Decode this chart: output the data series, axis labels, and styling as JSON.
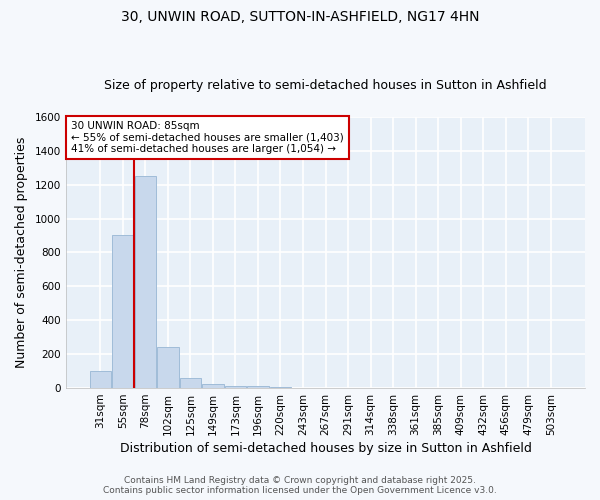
{
  "title": "30, UNWIN ROAD, SUTTON-IN-ASHFIELD, NG17 4HN",
  "subtitle": "Size of property relative to semi-detached houses in Sutton in Ashfield",
  "xlabel": "Distribution of semi-detached houses by size in Sutton in Ashfield",
  "ylabel": "Number of semi-detached properties",
  "categories": [
    "31sqm",
    "55sqm",
    "78sqm",
    "102sqm",
    "125sqm",
    "149sqm",
    "173sqm",
    "196sqm",
    "220sqm",
    "243sqm",
    "267sqm",
    "291sqm",
    "314sqm",
    "338sqm",
    "361sqm",
    "385sqm",
    "409sqm",
    "432sqm",
    "456sqm",
    "479sqm",
    "503sqm"
  ],
  "values": [
    100,
    900,
    1250,
    245,
    60,
    25,
    12,
    10,
    5,
    0,
    0,
    0,
    0,
    0,
    0,
    0,
    0,
    0,
    0,
    0,
    0
  ],
  "bar_color": "#c8d8ec",
  "bar_edge_color": "#a0bcd8",
  "property_bar_index": 2,
  "property_sqm": 85,
  "pct_smaller": 55,
  "count_smaller": 1403,
  "pct_larger": 41,
  "count_larger": 1054,
  "annotation_box_color": "#ffffff",
  "annotation_box_edge": "#cc0000",
  "vline_color": "#cc0000",
  "ylim": [
    0,
    1600
  ],
  "yticks": [
    0,
    200,
    400,
    600,
    800,
    1000,
    1200,
    1400,
    1600
  ],
  "footer_line1": "Contains HM Land Registry data © Crown copyright and database right 2025.",
  "footer_line2": "Contains public sector information licensed under the Open Government Licence v3.0.",
  "plot_bg_color": "#e8f0f8",
  "fig_bg_color": "#f5f8fc",
  "grid_color": "#ffffff",
  "title_fontsize": 10,
  "subtitle_fontsize": 9,
  "axis_label_fontsize": 9,
  "tick_fontsize": 7.5,
  "footer_fontsize": 6.5
}
